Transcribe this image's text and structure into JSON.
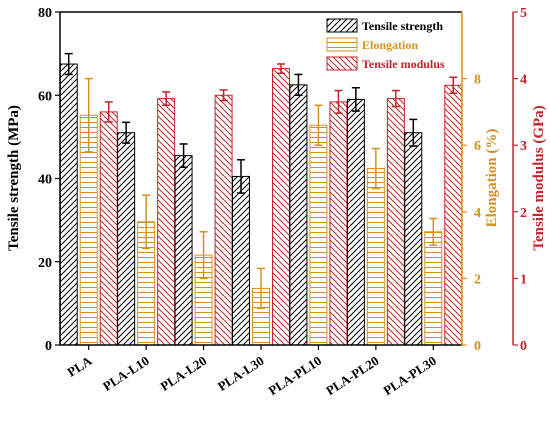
{
  "chart_data": {
    "type": "bar",
    "categories": [
      "PLA",
      "PLA-L10",
      "PLA-L20",
      "PLA-L30",
      "PLA-PL10",
      "PLA-PL20",
      "PLA-PL30"
    ],
    "series": [
      {
        "name": "Tensile strength",
        "axis": "left",
        "values": [
          67.5,
          51.0,
          45.5,
          40.5,
          62.5,
          59.0,
          51.0
        ],
        "errors": [
          2.5,
          2.5,
          2.8,
          4.0,
          2.5,
          2.8,
          3.2
        ],
        "color": "#000000",
        "pattern": "diagonal"
      },
      {
        "name": "Elongation",
        "axis": "right1",
        "values": [
          6.9,
          3.7,
          2.7,
          1.7,
          6.6,
          5.3,
          3.4
        ],
        "errors": [
          1.1,
          0.8,
          0.7,
          0.6,
          0.6,
          0.6,
          0.4
        ],
        "color": "#d4921c",
        "pattern": "horizontal"
      },
      {
        "name": "Tensile modulus",
        "axis": "right2",
        "values": [
          3.5,
          3.7,
          3.75,
          4.15,
          3.65,
          3.7,
          3.9
        ],
        "errors": [
          0.15,
          0.1,
          0.08,
          0.07,
          0.17,
          0.12,
          0.12
        ],
        "color": "#c0272d",
        "pattern": "diagonal-back"
      }
    ],
    "axes": {
      "left": {
        "label": "Tensile strength (MPa)",
        "min": 0,
        "max": 80,
        "ticks": [
          "0",
          "20",
          "40",
          "60",
          "80"
        ],
        "color": "#000000"
      },
      "right1": {
        "label": "Elongation (%)",
        "min": 0,
        "max": 10,
        "ticks": [
          "0",
          "2",
          "4",
          "6",
          "8"
        ],
        "color": "#d4921c"
      },
      "right2": {
        "label": "Tensile modulus (GPa)",
        "min": 0,
        "max": 5,
        "ticks": [
          "0",
          "1",
          "2",
          "3",
          "4",
          "5"
        ],
        "color": "#c0272d"
      }
    },
    "legend_position": "top-right",
    "grid": false
  }
}
